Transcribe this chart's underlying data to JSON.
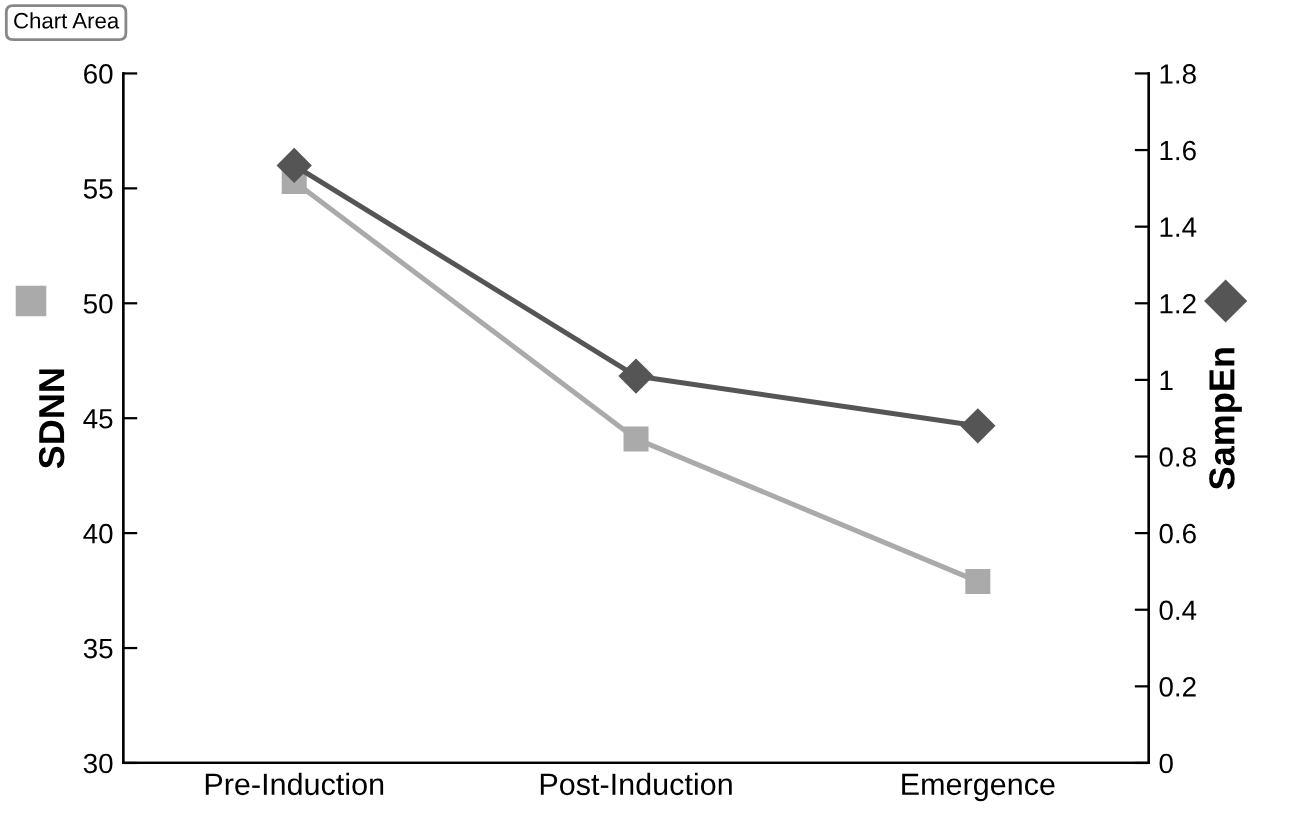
{
  "chart_data": {
    "type": "line",
    "categories": [
      "Pre-Induction",
      "Post-Induction",
      "Emergence"
    ],
    "ylabel": "SDNN",
    "y2label": "SampEn",
    "ylim": [
      30,
      60
    ],
    "yticks": [
      30,
      35,
      40,
      45,
      50,
      55,
      60
    ],
    "y2lim": [
      0,
      1.8
    ],
    "y2ticks": [
      0,
      {
        "value": 0.2,
        "label": "0.2"
      },
      {
        "value": 0.4,
        "label": "0.4"
      },
      {
        "value": 0.6,
        "label": "0.6"
      },
      {
        "value": 0.8,
        "label": "0.8"
      },
      1,
      {
        "value": 1.2,
        "label": "1.2"
      },
      {
        "value": 1.4,
        "label": "1.4"
      },
      {
        "value": 1.6,
        "label": "1.6"
      },
      {
        "value": 1.8,
        "label": "1.8"
      }
    ],
    "grid": false,
    "legend": false,
    "annotations": [
      "Chart Area"
    ],
    "series": [
      {
        "color": "#aaaaaa",
        "marker": "square",
        "values": [
          55.3,
          44.1,
          37.9
        ]
      },
      {
        "color": "#555555",
        "marker": "diamond",
        "axis": "y2",
        "values": [
          1.56,
          1.01,
          0.88
        ]
      }
    ]
  }
}
